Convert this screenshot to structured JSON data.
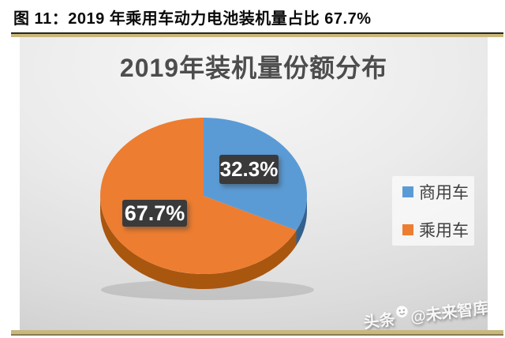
{
  "figure": {
    "caption": "图 11：2019 年乘用车动力电池装机量占比 67.7%"
  },
  "chart_data": {
    "type": "pie",
    "style": "3d",
    "title": "2019年装机量份额分布",
    "labels": [
      "商用车",
      "乘用车"
    ],
    "values": [
      32.3,
      67.7
    ],
    "data_labels": [
      "32.3%",
      "67.7%"
    ],
    "colors": [
      "#5B9BD5",
      "#ED7D31"
    ],
    "side_colors": [
      "#33618E",
      "#A9560F"
    ],
    "start_angle_deg": 0,
    "direction": "clockwise",
    "legend_position": "right",
    "legend_entries": [
      {
        "label": "商用车",
        "color": "#5B9BD5"
      },
      {
        "label": "乘用车",
        "color": "#ED7D31"
      }
    ]
  },
  "watermark": {
    "prefix": "头条",
    "suffix": "@未来智库",
    "icon": "toutiao-face-icon"
  }
}
